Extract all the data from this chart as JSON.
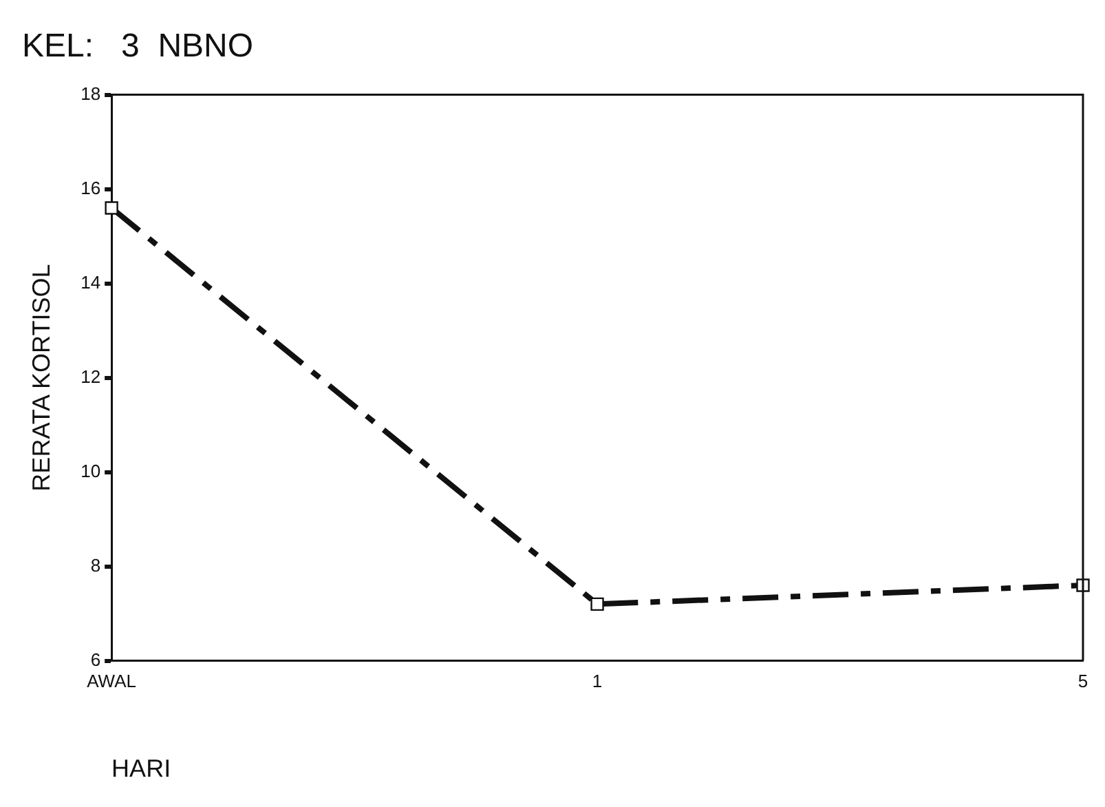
{
  "chart_data": {
    "type": "line",
    "title": "KEL:   3  NBNO",
    "xlabel": "HARI",
    "ylabel": "RERATA KORTISOL",
    "categories": [
      "AWAL",
      "1",
      "5"
    ],
    "series": [
      {
        "color": "#111111",
        "values": [
          15.6,
          7.2,
          7.6
        ]
      }
    ],
    "ylim": [
      6,
      18
    ],
    "yticks": [
      6,
      8,
      10,
      12,
      14,
      16,
      18
    ],
    "grid": false,
    "legend": false,
    "marker": "square",
    "line_style": "dashdot"
  }
}
